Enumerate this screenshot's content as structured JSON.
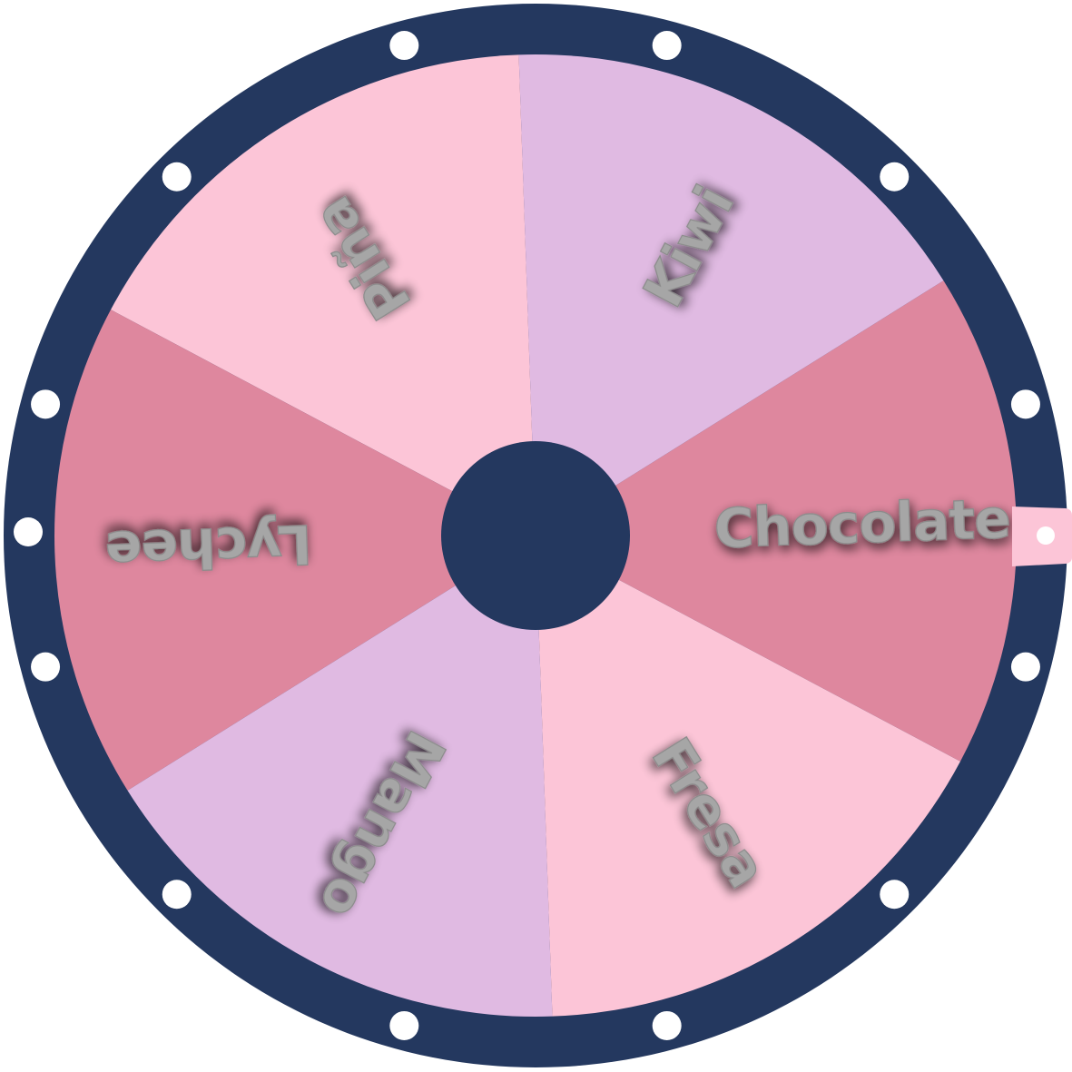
{
  "wheel": {
    "segments": [
      {
        "label": "Chocolate",
        "color": "#de879e"
      },
      {
        "label": "Kiwi",
        "color": "#e0bae2"
      },
      {
        "label": "Piña",
        "color": "#fcc5d7"
      },
      {
        "label": "Lychee",
        "color": "#de879e"
      },
      {
        "label": "Mango",
        "color": "#e0bae2"
      },
      {
        "label": "Fresa",
        "color": "#fcc5d7"
      }
    ],
    "rim_color": "#24385f",
    "hub_color": "#24385f",
    "peg_color": "#ffffff",
    "peg_count": 12,
    "pointer_color": "#fcc5d7",
    "label_color": "#a6a6a6"
  }
}
